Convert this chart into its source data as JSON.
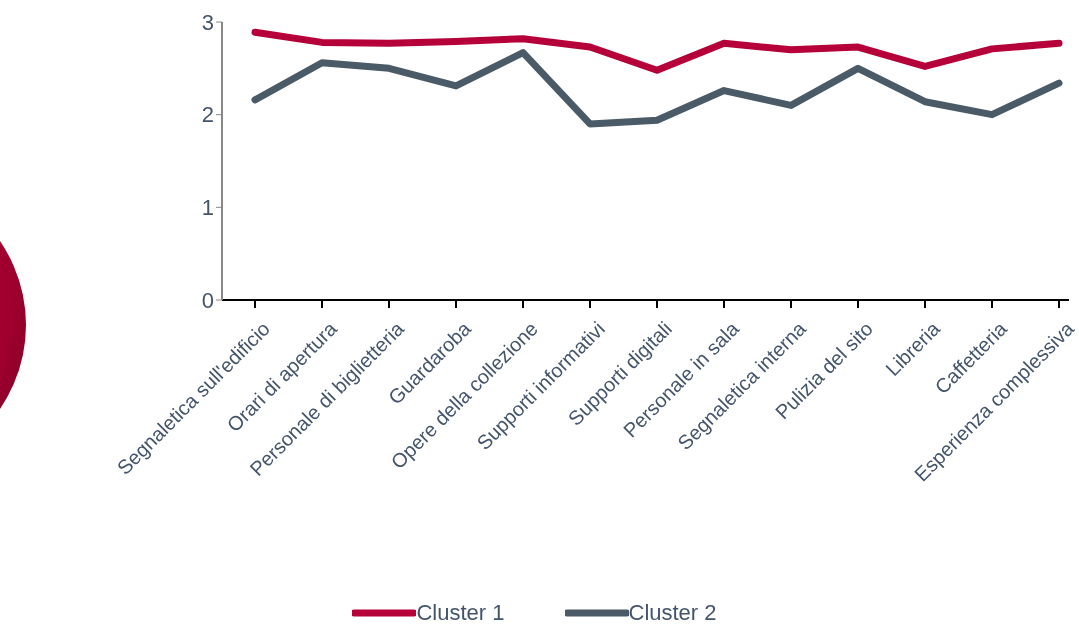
{
  "chart_data": {
    "type": "line",
    "categories": [
      "Segnaletica sull'edificio",
      "Orari di apertura",
      "Personale di biglietteria",
      "Guardaroba",
      "Opere della collezione",
      "Supporti informativi",
      "Supporti digitali",
      "Personale in sala",
      "Segnaletica interna",
      "Pulizia del sito",
      "Libreria",
      "Caffetteria",
      "Esperienza complessiva"
    ],
    "series": [
      {
        "name": "Cluster 1",
        "color": "#b5003a",
        "values": [
          2.89,
          2.78,
          2.77,
          2.79,
          2.82,
          2.73,
          2.48,
          2.77,
          2.7,
          2.73,
          2.52,
          2.71,
          2.77
        ]
      },
      {
        "name": "Cluster 2",
        "color": "#4a5a66",
        "values": [
          2.16,
          2.56,
          2.5,
          2.31,
          2.67,
          1.9,
          1.94,
          2.26,
          2.1,
          2.5,
          2.14,
          2,
          2.34
        ]
      }
    ],
    "ylim": [
      0,
      3
    ],
    "yticks": [
      0,
      1,
      2,
      3
    ],
    "grid": false,
    "legend": "bottom",
    "marker": "none",
    "line_style": "solid"
  }
}
